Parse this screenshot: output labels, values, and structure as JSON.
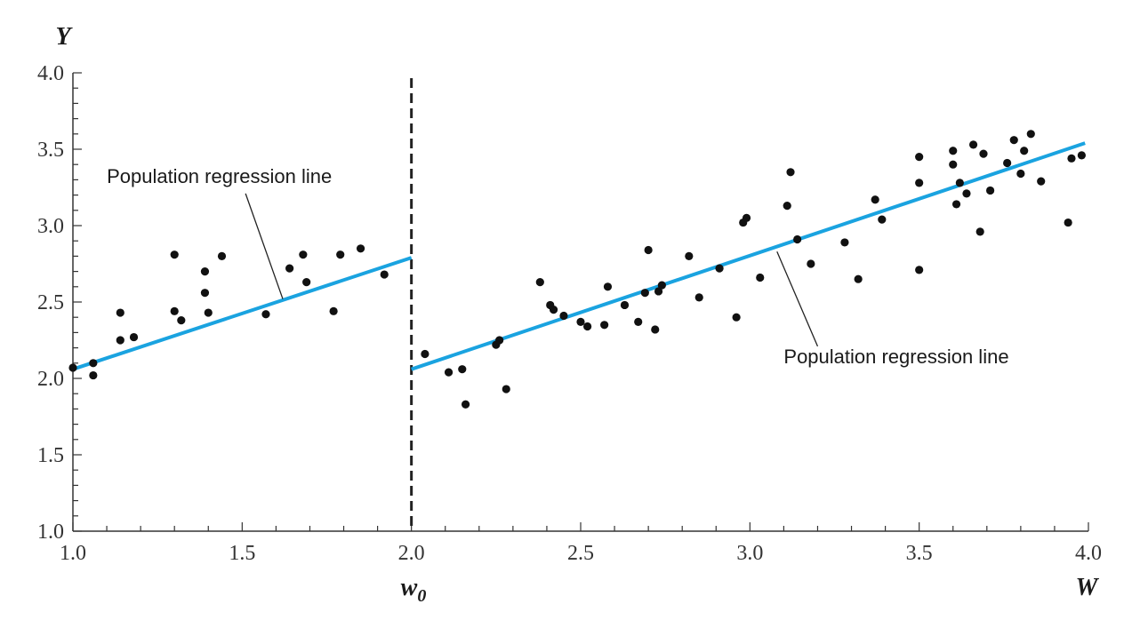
{
  "chart_data": {
    "type": "scatter",
    "xlabel": "W",
    "ylabel": "Y",
    "xlim": [
      1.0,
      4.0
    ],
    "ylim": [
      1.0,
      4.0
    ],
    "x_ticks": [
      "1.0",
      "1.5",
      "2.0",
      "2.5",
      "3.0",
      "3.5",
      "4.0"
    ],
    "y_ticks": [
      "1.0",
      "1.5",
      "2.0",
      "2.5",
      "3.0",
      "3.5",
      "4.0"
    ],
    "threshold": {
      "x": 2.0,
      "label": "w",
      "label_sub": "0"
    },
    "line_color": "#1aa3e0",
    "point_color": "#111111",
    "regression_lines": [
      {
        "x": [
          1.0,
          2.0
        ],
        "y": [
          2.06,
          2.79
        ]
      },
      {
        "x": [
          2.0,
          3.99
        ],
        "y": [
          2.06,
          3.54
        ]
      }
    ],
    "annotations": [
      {
        "text": "Population regression line",
        "text_x": 1.1,
        "text_y": 3.28,
        "anchor": "start",
        "pointer_from": [
          1.51,
          3.21
        ],
        "pointer_to": [
          1.62,
          2.52
        ]
      },
      {
        "text": "Population regression line",
        "text_x": 3.1,
        "text_y": 2.1,
        "anchor": "start",
        "pointer_from": [
          3.2,
          2.21
        ],
        "pointer_to": [
          3.08,
          2.83
        ]
      }
    ],
    "points": [
      [
        1.0,
        2.07
      ],
      [
        1.06,
        2.1
      ],
      [
        1.06,
        2.02
      ],
      [
        1.14,
        2.43
      ],
      [
        1.14,
        2.25
      ],
      [
        1.18,
        2.27
      ],
      [
        1.3,
        2.81
      ],
      [
        1.3,
        2.44
      ],
      [
        1.32,
        2.38
      ],
      [
        1.39,
        2.7
      ],
      [
        1.39,
        2.56
      ],
      [
        1.4,
        2.43
      ],
      [
        1.44,
        2.8
      ],
      [
        1.57,
        2.42
      ],
      [
        1.64,
        2.72
      ],
      [
        1.68,
        2.81
      ],
      [
        1.69,
        2.63
      ],
      [
        1.77,
        2.44
      ],
      [
        1.79,
        2.81
      ],
      [
        1.85,
        2.85
      ],
      [
        1.92,
        2.68
      ],
      [
        2.04,
        2.16
      ],
      [
        2.11,
        2.04
      ],
      [
        2.15,
        2.06
      ],
      [
        2.16,
        1.83
      ],
      [
        2.25,
        2.22
      ],
      [
        2.26,
        2.25
      ],
      [
        2.28,
        1.93
      ],
      [
        2.38,
        2.63
      ],
      [
        2.41,
        2.48
      ],
      [
        2.42,
        2.45
      ],
      [
        2.45,
        2.41
      ],
      [
        2.5,
        2.37
      ],
      [
        2.52,
        2.34
      ],
      [
        2.57,
        2.35
      ],
      [
        2.58,
        2.6
      ],
      [
        2.63,
        2.48
      ],
      [
        2.67,
        2.37
      ],
      [
        2.69,
        2.56
      ],
      [
        2.7,
        2.84
      ],
      [
        2.72,
        2.32
      ],
      [
        2.73,
        2.57
      ],
      [
        2.74,
        2.61
      ],
      [
        2.82,
        2.8
      ],
      [
        2.85,
        2.53
      ],
      [
        2.91,
        2.72
      ],
      [
        2.96,
        2.4
      ],
      [
        2.98,
        3.02
      ],
      [
        2.99,
        3.05
      ],
      [
        3.03,
        2.66
      ],
      [
        3.11,
        3.13
      ],
      [
        3.12,
        3.35
      ],
      [
        3.14,
        2.91
      ],
      [
        3.18,
        2.75
      ],
      [
        3.28,
        2.89
      ],
      [
        3.32,
        2.65
      ],
      [
        3.37,
        3.17
      ],
      [
        3.39,
        3.04
      ],
      [
        3.5,
        3.45
      ],
      [
        3.5,
        3.28
      ],
      [
        3.5,
        2.71
      ],
      [
        3.6,
        3.49
      ],
      [
        3.6,
        3.4
      ],
      [
        3.61,
        3.14
      ],
      [
        3.62,
        3.28
      ],
      [
        3.64,
        3.21
      ],
      [
        3.66,
        3.53
      ],
      [
        3.68,
        2.96
      ],
      [
        3.69,
        3.47
      ],
      [
        3.71,
        3.23
      ],
      [
        3.76,
        3.41
      ],
      [
        3.78,
        3.56
      ],
      [
        3.8,
        3.34
      ],
      [
        3.81,
        3.49
      ],
      [
        3.83,
        3.6
      ],
      [
        3.86,
        3.29
      ],
      [
        3.94,
        3.02
      ],
      [
        3.95,
        3.44
      ],
      [
        3.98,
        3.46
      ]
    ]
  }
}
